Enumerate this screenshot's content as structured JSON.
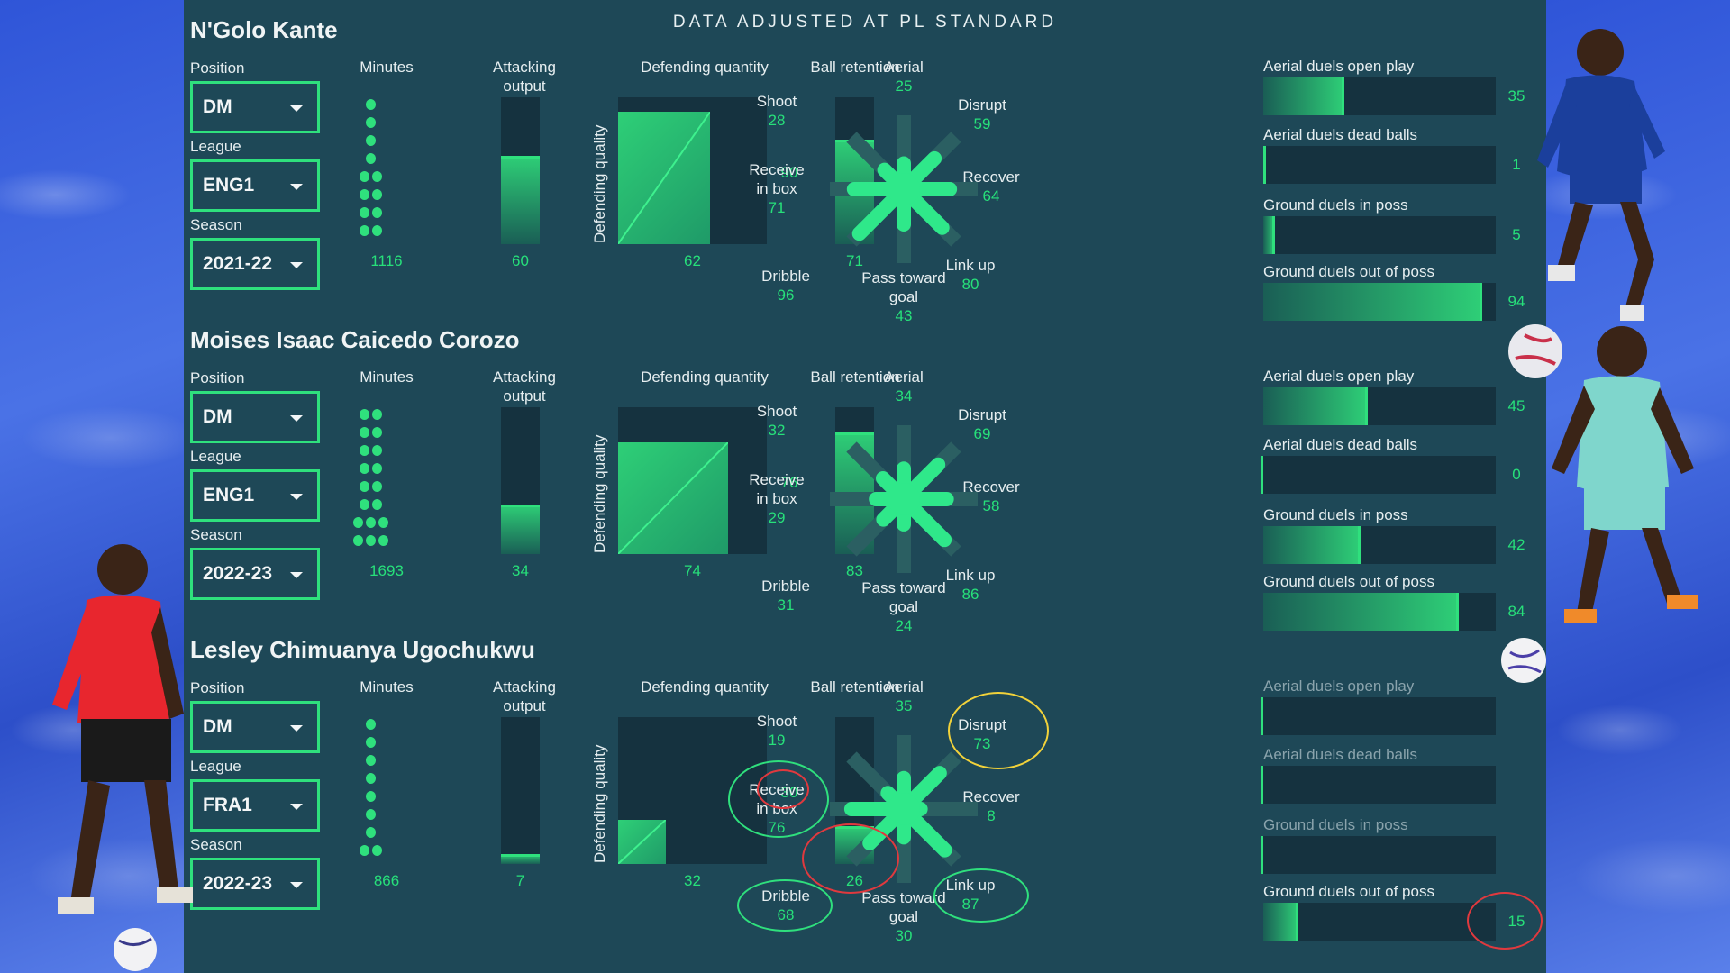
{
  "header": {
    "title": "DATA ADJUSTED AT PL STANDARD"
  },
  "labels": {
    "position": "Position",
    "league": "League",
    "season": "Season",
    "minutes": "Minutes",
    "attacking_output": "Attacking output",
    "defending_quantity": "Defending quantity",
    "defending_quality": "Defending quality",
    "ball_retention": "Ball retention",
    "aerial": "Aerial",
    "shoot": "Shoot",
    "disrupt": "Disrupt",
    "receive_in_box": "Receive in box",
    "recover": "Recover",
    "dribble": "Dribble",
    "pass_toward_goal": "Pass toward goal",
    "link_up": "Link up",
    "aerial_duels_open_play": "Aerial duels open play",
    "aerial_duels_dead_balls": "Aerial duels dead balls",
    "ground_duels_in_poss": "Ground duels in poss",
    "ground_duels_out_of_poss": "Ground duels out of poss"
  },
  "colors": {
    "panel": "#1e4857",
    "track": "#15323f",
    "accent": "#2fe07d",
    "text": "#e6eef0",
    "highlight_red": "#e0393e",
    "highlight_green": "#2fe07d",
    "highlight_yellow": "#f2d23a",
    "side_background": "#3b5fd6"
  },
  "chart_data": [
    {
      "type": "bar",
      "player": "N'Golo Kante",
      "position": "DM",
      "league": "ENG1",
      "season": "2021-22",
      "minutes": 1116,
      "minutes_dots": [
        1,
        1,
        1,
        1,
        2,
        2,
        2,
        2
      ],
      "attacking_output": 60,
      "defending_quantity": 62,
      "defending_quality": 90,
      "ball_retention": 71,
      "style": {
        "aerial": 25,
        "shoot": 28,
        "disrupt": 59,
        "receive_in_box": 71,
        "recover": 64,
        "dribble": 96,
        "pass_toward_goal": 43,
        "link_up": 80
      },
      "duels": {
        "aerial_duels_open_play": 35,
        "aerial_duels_dead_balls": 1,
        "ground_duels_in_poss": 5,
        "ground_duels_out_of_poss": 94
      }
    },
    {
      "type": "bar",
      "player": "Moises Isaac Caicedo Corozo",
      "position": "DM",
      "league": "ENG1",
      "season": "2022-23",
      "minutes": 1693,
      "minutes_dots": [
        2,
        2,
        2,
        2,
        2,
        2,
        3,
        3
      ],
      "attacking_output": 34,
      "defending_quantity": 74,
      "defending_quality": 76,
      "ball_retention": 83,
      "style": {
        "aerial": 34,
        "shoot": 32,
        "disrupt": 69,
        "receive_in_box": 29,
        "recover": 58,
        "dribble": 31,
        "pass_toward_goal": 24,
        "link_up": 86
      },
      "duels": {
        "aerial_duels_open_play": 45,
        "aerial_duels_dead_balls": 0,
        "ground_duels_in_poss": 42,
        "ground_duels_out_of_poss": 84
      }
    },
    {
      "type": "bar",
      "player": "Lesley Chimuanya Ugochukwu",
      "position": "DM",
      "league": "FRA1",
      "season": "2022-23",
      "minutes": 866,
      "minutes_dots": [
        1,
        1,
        1,
        1,
        1,
        1,
        1,
        2
      ],
      "attacking_output": 7,
      "defending_quantity": 32,
      "defending_quality": 30,
      "ball_retention": 26,
      "style": {
        "aerial": 35,
        "shoot": 19,
        "disrupt": 73,
        "receive_in_box": 76,
        "recover": 8,
        "dribble": 68,
        "pass_toward_goal": 30,
        "link_up": 87
      },
      "duels": {
        "aerial_duels_open_play": 0,
        "aerial_duels_dead_balls": 0,
        "ground_duels_in_poss": 0,
        "ground_duels_out_of_poss": 15
      },
      "dimmed_duels": [
        "aerial_duels_open_play",
        "aerial_duels_dead_balls",
        "ground_duels_in_poss"
      ],
      "highlights": {
        "red": [
          "defending_quality",
          "ball_retention",
          "ground_duels_out_of_poss"
        ],
        "green": [
          "receive_in_box",
          "dribble",
          "link_up"
        ],
        "yellow": [
          "disrupt"
        ]
      }
    }
  ]
}
